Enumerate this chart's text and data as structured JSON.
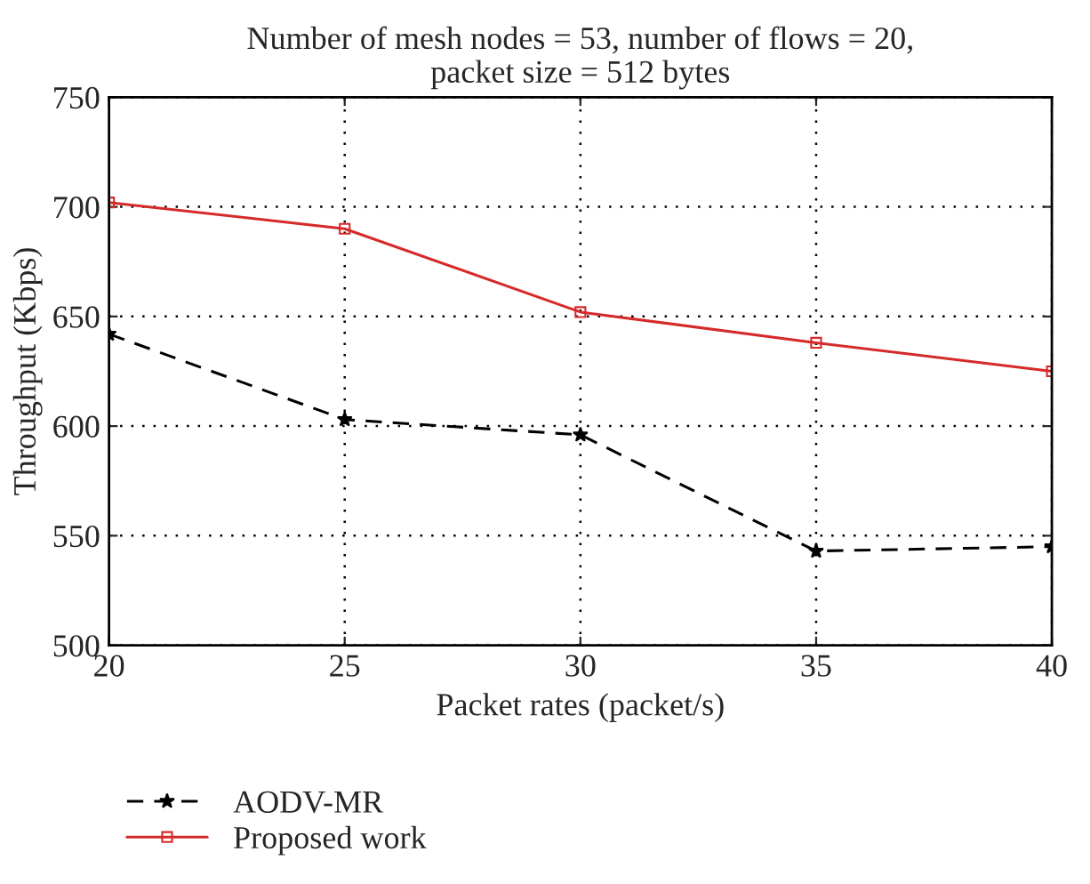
{
  "chart_data": {
    "type": "line",
    "title": "Number of mesh nodes = 53, number of flows = 20,\npacket size = 512 bytes",
    "xlabel": "Packet rates (packet/s)",
    "ylabel": "Throughput (Kbps)",
    "x": [
      20,
      25,
      30,
      35,
      40
    ],
    "series": [
      {
        "name": "AODV-MR",
        "color": "#000000",
        "values": [
          642,
          603,
          596,
          543,
          545
        ],
        "marker": "star",
        "line_style": "dashed"
      },
      {
        "name": "Proposed work",
        "color": "#d62a2a",
        "values": [
          702,
          690,
          652,
          638,
          625
        ],
        "marker": "square",
        "line_style": "solid"
      }
    ],
    "xlim": [
      20,
      40
    ],
    "xticks": [
      20,
      25,
      30,
      35,
      40
    ],
    "ylim": [
      500,
      750
    ],
    "yticks": [
      500,
      550,
      600,
      650,
      700,
      750
    ],
    "grid": true,
    "legend": "bottom left"
  }
}
